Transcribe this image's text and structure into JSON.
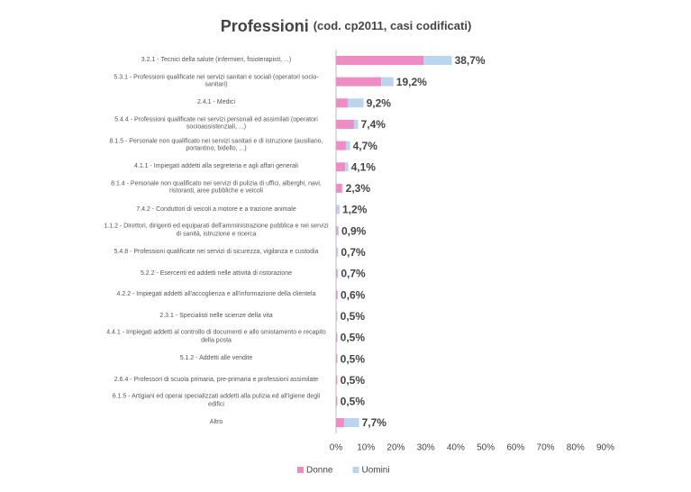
{
  "chart_data": {
    "type": "stacked-barh",
    "title": "Professioni",
    "subtitle": "(cod. cp2011, casi codificati)",
    "categories": [
      "3.2.1 - Tecnici della salute (infermieri, fisioterapisti, ...)",
      "5.3.1 - Professioni qualificate nei servizi sanitari e sociali (operatori socio-sanitari)",
      "2.4.1 - Medici",
      "5.4.4 - Professioni qualificate nei servizi personali ed assimilati (operatori socioassistenziali, ...)",
      "8.1.5 - Personale non qualificato nei servizi sanitari e di istruzione (ausiliario, portantino, bidello, ...)",
      "4.1.1 - Impiegati addetti alla segreteria e agli affari generali",
      "8.1.4 - Personale non qualificato nei servizi di pulizia di uffici, alberghi, navi, ristoranti, aree pubbliche e veicoli",
      "7.4.2 - Conduttori di veicoli a motore e a trazione animale",
      "1.1.2 - Direttori, dirigenti ed equiparati dell'amministrazione pubblica e nei servizi di sanità, istruzione e ricerca",
      "5.4.8 - Professioni qualificate nei servizi di sicurezza, vigilanza e custodia",
      "5.2.2 - Esercenti ed addetti nelle attività di ristorazione",
      "4.2.2 - Impiegati addetti all'accoglienza e all'informazione della clientela",
      "2.3.1 - Specialisti nelle scienze della vita",
      "4.4.1 - Impiegati addetti al controllo di documenti e allo smistamento e recapito della posta",
      "5.1.2 - Addetti alle vendite",
      "2.6.4 - Professori di scuola primaria, pre-primaria e professioni assimilate",
      "6.1.5 - Artigiani ed operai specializzati addetti alla pulizia ed all'igiene degli edifici",
      "Altro"
    ],
    "series": [
      {
        "name": "Donne",
        "color": "#f08cc4",
        "values": [
          29.2,
          15.1,
          3.9,
          6.0,
          3.3,
          3.0,
          2.0,
          0.2,
          0.5,
          0.2,
          0.4,
          0.4,
          0.2,
          0.3,
          0.3,
          0.4,
          0.4,
          2.7
        ]
      },
      {
        "name": "Uomini",
        "color": "#bcd5ee",
        "values": [
          9.5,
          4.1,
          5.3,
          1.4,
          1.4,
          1.1,
          0.3,
          1.0,
          0.4,
          0.5,
          0.3,
          0.2,
          0.3,
          0.2,
          0.2,
          0.1,
          0.1,
          5.0
        ]
      }
    ],
    "totals": [
      38.7,
      19.2,
      9.2,
      7.4,
      4.7,
      4.1,
      2.3,
      1.2,
      0.9,
      0.7,
      0.7,
      0.6,
      0.5,
      0.5,
      0.5,
      0.5,
      0.5,
      7.7
    ],
    "total_labels": [
      "38,7%",
      "19,2%",
      "9,2%",
      "7,4%",
      "4,7%",
      "4,1%",
      "2,3%",
      "1,2%",
      "0,9%",
      "0,7%",
      "0,7%",
      "0,6%",
      "0,5%",
      "0,5%",
      "0,5%",
      "0,5%",
      "0,5%",
      "7,7%"
    ],
    "xlim": [
      0,
      90
    ],
    "xticks": [
      {
        "value": 0,
        "label": "0%"
      },
      {
        "value": 10,
        "label": "10%"
      },
      {
        "value": 20,
        "label": "20%"
      },
      {
        "value": 30,
        "label": "30%"
      },
      {
        "value": 40,
        "label": "40%"
      },
      {
        "value": 50,
        "label": "50%"
      },
      {
        "value": 60,
        "label": "60%"
      },
      {
        "value": 70,
        "label": "70%"
      },
      {
        "value": 80,
        "label": "80%"
      },
      {
        "value": 90,
        "label": "90%"
      }
    ],
    "legend": "bottom"
  }
}
